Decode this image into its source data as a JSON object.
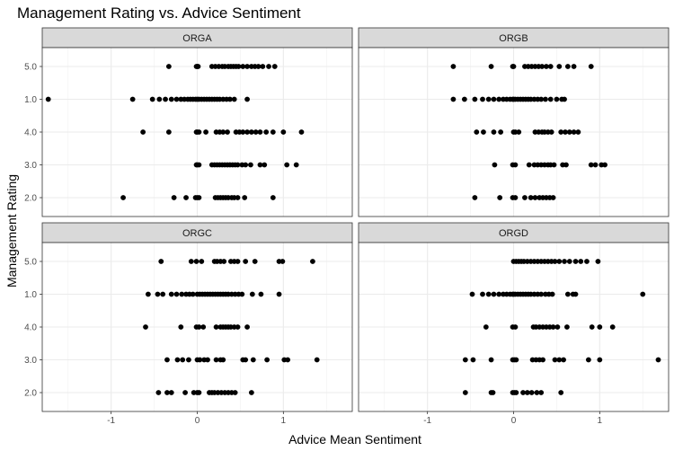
{
  "chart_data": {
    "type": "scatter",
    "title": "Management Rating vs. Advice Sentiment",
    "xlabel": "Advice Mean Sentiment",
    "ylabel": "Management Rating",
    "y_categories": [
      "2.0",
      "3.0",
      "4.0",
      "1.0",
      "5.0"
    ],
    "x_ticks": [
      -1,
      0,
      1
    ],
    "x_tick_labels": [
      "-1",
      "0",
      "1"
    ],
    "xlim": [
      -1.8,
      1.8
    ],
    "grid": true,
    "panels": [
      {
        "name": "ORGA",
        "points": {
          "5.0": [
            -0.33,
            -0.01,
            0.0,
            0.01,
            0.17,
            0.21,
            0.25,
            0.29,
            0.32,
            0.36,
            0.39,
            0.42,
            0.45,
            0.48,
            0.53,
            0.58,
            0.63,
            0.67,
            0.71,
            0.76,
            0.83,
            0.9
          ],
          "1.0": [
            -1.73,
            -0.75,
            -0.52,
            -0.44,
            -0.37,
            -0.3,
            -0.24,
            -0.19,
            -0.15,
            -0.11,
            -0.08,
            -0.05,
            -0.02,
            0.0,
            0.02,
            0.05,
            0.08,
            0.11,
            0.14,
            0.17,
            0.2,
            0.23,
            0.26,
            0.3,
            0.34,
            0.38,
            0.43,
            0.58
          ],
          "4.0": [
            -0.63,
            -0.33,
            -0.01,
            0.0,
            0.02,
            0.1,
            0.22,
            0.26,
            0.3,
            0.35,
            0.45,
            0.49,
            0.53,
            0.58,
            0.63,
            0.68,
            0.73,
            0.8,
            0.88,
            1.0,
            1.21
          ],
          "3.0": [
            -0.01,
            0.0,
            0.02,
            0.17,
            0.2,
            0.23,
            0.26,
            0.29,
            0.32,
            0.35,
            0.38,
            0.41,
            0.44,
            0.47,
            0.52,
            0.56,
            0.62,
            0.73,
            0.78,
            1.04,
            1.15
          ],
          "2.0": [
            -0.86,
            -0.27,
            -0.13,
            -0.02,
            0.0,
            0.02,
            0.21,
            0.24,
            0.27,
            0.3,
            0.33,
            0.36,
            0.4,
            0.43,
            0.47,
            0.55,
            0.88
          ]
        }
      },
      {
        "name": "ORGB",
        "points": {
          "5.0": [
            -0.7,
            -0.26,
            -0.01,
            0.0,
            0.13,
            0.17,
            0.21,
            0.25,
            0.29,
            0.33,
            0.38,
            0.43,
            0.53,
            0.63,
            0.7,
            0.9
          ],
          "1.0": [
            -0.7,
            -0.57,
            -0.45,
            -0.36,
            -0.29,
            -0.23,
            -0.17,
            -0.12,
            -0.08,
            -0.04,
            -0.01,
            0.0,
            0.02,
            0.05,
            0.08,
            0.11,
            0.14,
            0.17,
            0.2,
            0.24,
            0.28,
            0.32,
            0.37,
            0.43,
            0.5,
            0.56,
            0.59
          ],
          "4.0": [
            -0.43,
            -0.35,
            -0.23,
            -0.15,
            0.0,
            0.02,
            0.06,
            0.25,
            0.29,
            0.33,
            0.36,
            0.4,
            0.44,
            0.55,
            0.6,
            0.65,
            0.7,
            0.75
          ],
          "3.0": [
            -0.22,
            -0.01,
            0.02,
            0.18,
            0.24,
            0.28,
            0.32,
            0.36,
            0.4,
            0.43,
            0.47,
            0.57,
            0.61,
            0.9,
            0.95,
            1.02,
            1.06
          ],
          "2.0": [
            -0.45,
            -0.16,
            -0.01,
            0.02,
            0.13,
            0.2,
            0.25,
            0.3,
            0.34,
            0.38,
            0.42,
            0.46
          ]
        }
      },
      {
        "name": "ORGC",
        "points": {
          "5.0": [
            -0.42,
            -0.07,
            -0.01,
            0.05,
            0.2,
            0.23,
            0.27,
            0.31,
            0.39,
            0.43,
            0.47,
            0.56,
            0.67,
            0.95,
            0.99,
            1.34
          ],
          "1.0": [
            -0.57,
            -0.46,
            -0.4,
            -0.3,
            -0.24,
            -0.18,
            -0.13,
            -0.09,
            -0.05,
            0.0,
            0.03,
            0.06,
            0.09,
            0.12,
            0.15,
            0.18,
            0.21,
            0.24,
            0.27,
            0.3,
            0.33,
            0.36,
            0.4,
            0.44,
            0.48,
            0.52,
            0.64,
            0.74,
            0.95
          ],
          "4.0": [
            -0.6,
            -0.19,
            -0.01,
            0.02,
            0.07,
            0.22,
            0.27,
            0.3,
            0.33,
            0.36,
            0.39,
            0.43,
            0.47,
            0.58
          ],
          "3.0": [
            -0.35,
            -0.23,
            -0.17,
            -0.1,
            0.0,
            0.03,
            0.08,
            0.12,
            0.22,
            0.27,
            0.3,
            0.53,
            0.56,
            0.65,
            0.81,
            1.01,
            1.05,
            1.39
          ],
          "2.0": [
            -0.45,
            -0.35,
            -0.3,
            -0.14,
            -0.04,
            0.0,
            0.02,
            0.14,
            0.17,
            0.2,
            0.24,
            0.28,
            0.32,
            0.36,
            0.4,
            0.44,
            0.63
          ]
        }
      },
      {
        "name": "ORGD",
        "points": {
          "5.0": [
            0.0,
            0.03,
            0.06,
            0.09,
            0.12,
            0.16,
            0.2,
            0.24,
            0.28,
            0.32,
            0.36,
            0.4,
            0.44,
            0.48,
            0.53,
            0.59,
            0.65,
            0.72,
            0.78,
            0.85,
            0.98
          ],
          "1.0": [
            -0.48,
            -0.36,
            -0.29,
            -0.23,
            -0.17,
            -0.12,
            -0.08,
            -0.04,
            -0.01,
            0.0,
            0.02,
            0.05,
            0.08,
            0.11,
            0.14,
            0.17,
            0.2,
            0.24,
            0.28,
            0.32,
            0.37,
            0.41,
            0.45,
            0.63,
            0.69,
            0.72,
            1.5
          ],
          "4.0": [
            -0.32,
            -0.01,
            0.02,
            0.23,
            0.26,
            0.3,
            0.34,
            0.38,
            0.42,
            0.46,
            0.51,
            0.62,
            0.91,
            1.0,
            1.15
          ],
          "3.0": [
            -0.56,
            -0.47,
            -0.26,
            -0.01,
            0.01,
            0.03,
            0.22,
            0.26,
            0.3,
            0.34,
            0.48,
            0.53,
            0.58,
            0.87,
            1.0,
            1.68
          ],
          "2.0": [
            -0.56,
            -0.26,
            -0.24,
            -0.01,
            0.01,
            0.03,
            0.11,
            0.16,
            0.21,
            0.27,
            0.32,
            0.55
          ]
        }
      }
    ]
  }
}
